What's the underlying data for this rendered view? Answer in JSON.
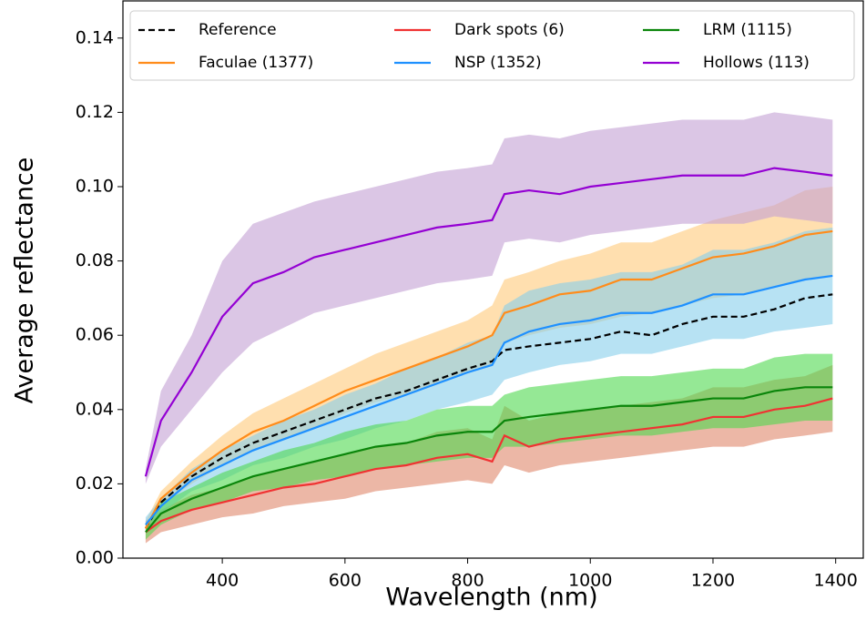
{
  "chart_data": {
    "type": "line",
    "x_label": "Wavelength (nm)",
    "y_label": "Average reflectance",
    "x": [
      275,
      300,
      350,
      400,
      450,
      500,
      550,
      600,
      650,
      700,
      750,
      800,
      840,
      860,
      900,
      950,
      1000,
      1050,
      1100,
      1150,
      1200,
      1250,
      1300,
      1350,
      1395
    ],
    "xlim": [
      238,
      1445
    ],
    "xticks": [
      400,
      600,
      800,
      1000,
      1200,
      1400
    ],
    "ylim": [
      0,
      0.15
    ],
    "yticks": [
      {
        "value": 0,
        "label": "0.00"
      },
      {
        "value": 0.02,
        "label": "0.02"
      },
      {
        "value": 0.04,
        "label": "0.04"
      },
      {
        "value": 0.06,
        "label": "0.06"
      },
      {
        "value": 0.08,
        "label": "0.08"
      },
      {
        "value": 0.1,
        "label": "0.10"
      },
      {
        "value": 0.12,
        "label": "0.12"
      },
      {
        "value": 0.14,
        "label": "0.14"
      }
    ],
    "legend": "upper center",
    "series": [
      {
        "name": "Reference",
        "color": "#000000",
        "dash": true,
        "values": [
          0.008,
          0.015,
          0.022,
          0.027,
          0.031,
          0.034,
          0.037,
          0.04,
          0.043,
          0.045,
          0.048,
          0.051,
          0.053,
          0.056,
          0.057,
          0.058,
          0.059,
          0.061,
          0.06,
          0.063,
          0.065,
          0.065,
          0.067,
          0.07,
          0.071
        ]
      },
      {
        "name": "Faculae (1377)",
        "color": "#ff8c1a",
        "band_color": "#ffc97a",
        "values": [
          0.008,
          0.016,
          0.023,
          0.029,
          0.034,
          0.037,
          0.041,
          0.045,
          0.048,
          0.051,
          0.054,
          0.057,
          0.06,
          0.066,
          0.068,
          0.071,
          0.072,
          0.075,
          0.075,
          0.078,
          0.081,
          0.082,
          0.084,
          0.087,
          0.088
        ],
        "lower": [
          0.007,
          0.014,
          0.02,
          0.025,
          0.029,
          0.032,
          0.035,
          0.039,
          0.042,
          0.044,
          0.047,
          0.05,
          0.052,
          0.058,
          0.06,
          0.062,
          0.063,
          0.065,
          0.066,
          0.068,
          0.07,
          0.071,
          0.073,
          0.075,
          0.076
        ],
        "upper": [
          0.01,
          0.018,
          0.026,
          0.033,
          0.039,
          0.043,
          0.047,
          0.051,
          0.055,
          0.058,
          0.061,
          0.064,
          0.068,
          0.075,
          0.077,
          0.08,
          0.082,
          0.085,
          0.085,
          0.088,
          0.091,
          0.093,
          0.095,
          0.099,
          0.1
        ]
      },
      {
        "name": "Dark spots (6)",
        "color": "#f03232",
        "band_color": "#e0876a",
        "values": [
          0.007,
          0.01,
          0.013,
          0.015,
          0.017,
          0.019,
          0.02,
          0.022,
          0.024,
          0.025,
          0.027,
          0.028,
          0.026,
          0.033,
          0.03,
          0.032,
          0.033,
          0.034,
          0.035,
          0.036,
          0.038,
          0.038,
          0.04,
          0.041,
          0.043
        ],
        "lower": [
          0.004,
          0.007,
          0.009,
          0.011,
          0.012,
          0.014,
          0.015,
          0.016,
          0.018,
          0.019,
          0.02,
          0.021,
          0.02,
          0.025,
          0.023,
          0.025,
          0.026,
          0.027,
          0.028,
          0.029,
          0.03,
          0.03,
          0.032,
          0.033,
          0.034
        ],
        "upper": [
          0.01,
          0.013,
          0.017,
          0.019,
          0.022,
          0.024,
          0.026,
          0.028,
          0.03,
          0.031,
          0.034,
          0.035,
          0.032,
          0.041,
          0.037,
          0.039,
          0.04,
          0.041,
          0.042,
          0.043,
          0.046,
          0.046,
          0.048,
          0.049,
          0.052
        ]
      },
      {
        "name": "NSP (1352)",
        "color": "#1e90ff",
        "band_color": "#87ceeb",
        "values": [
          0.009,
          0.014,
          0.021,
          0.025,
          0.029,
          0.032,
          0.035,
          0.038,
          0.041,
          0.044,
          0.047,
          0.05,
          0.052,
          0.058,
          0.061,
          0.063,
          0.064,
          0.066,
          0.066,
          0.068,
          0.071,
          0.071,
          0.073,
          0.075,
          0.076
        ],
        "lower": [
          0.008,
          0.012,
          0.018,
          0.021,
          0.025,
          0.027,
          0.03,
          0.032,
          0.035,
          0.037,
          0.04,
          0.042,
          0.044,
          0.048,
          0.05,
          0.052,
          0.053,
          0.055,
          0.055,
          0.057,
          0.059,
          0.059,
          0.061,
          0.062,
          0.063
        ],
        "upper": [
          0.011,
          0.016,
          0.024,
          0.029,
          0.033,
          0.037,
          0.04,
          0.044,
          0.047,
          0.051,
          0.054,
          0.058,
          0.06,
          0.068,
          0.072,
          0.074,
          0.075,
          0.077,
          0.077,
          0.079,
          0.083,
          0.083,
          0.085,
          0.088,
          0.089
        ]
      },
      {
        "name": "LRM (1115)",
        "color": "#0a850a",
        "band_color": "#4ed84e",
        "values": [
          0.007,
          0.012,
          0.016,
          0.019,
          0.022,
          0.024,
          0.026,
          0.028,
          0.03,
          0.031,
          0.033,
          0.034,
          0.034,
          0.037,
          0.038,
          0.039,
          0.04,
          0.041,
          0.041,
          0.042,
          0.043,
          0.043,
          0.045,
          0.046,
          0.046
        ],
        "lower": [
          0.005,
          0.009,
          0.013,
          0.015,
          0.018,
          0.019,
          0.021,
          0.022,
          0.024,
          0.025,
          0.026,
          0.027,
          0.027,
          0.03,
          0.03,
          0.031,
          0.032,
          0.033,
          0.033,
          0.034,
          0.035,
          0.035,
          0.036,
          0.037,
          0.037
        ],
        "upper": [
          0.009,
          0.015,
          0.019,
          0.023,
          0.026,
          0.029,
          0.031,
          0.034,
          0.036,
          0.037,
          0.04,
          0.041,
          0.041,
          0.044,
          0.046,
          0.047,
          0.048,
          0.049,
          0.049,
          0.05,
          0.051,
          0.051,
          0.054,
          0.055,
          0.055
        ]
      },
      {
        "name": "Hollows (113)",
        "color": "#9400d3",
        "band_color": "#c3a0d3",
        "values": [
          0.022,
          0.037,
          0.05,
          0.065,
          0.074,
          0.077,
          0.081,
          0.083,
          0.085,
          0.087,
          0.089,
          0.09,
          0.091,
          0.098,
          0.099,
          0.098,
          0.1,
          0.101,
          0.102,
          0.103,
          0.103,
          0.103,
          0.105,
          0.104,
          0.103
        ],
        "lower": [
          0.02,
          0.03,
          0.04,
          0.05,
          0.058,
          0.062,
          0.066,
          0.068,
          0.07,
          0.072,
          0.074,
          0.075,
          0.076,
          0.085,
          0.086,
          0.085,
          0.087,
          0.088,
          0.089,
          0.09,
          0.09,
          0.09,
          0.092,
          0.091,
          0.09
        ],
        "upper": [
          0.024,
          0.045,
          0.06,
          0.08,
          0.09,
          0.093,
          0.096,
          0.098,
          0.1,
          0.102,
          0.104,
          0.105,
          0.106,
          0.113,
          0.114,
          0.113,
          0.115,
          0.116,
          0.117,
          0.118,
          0.118,
          0.118,
          0.12,
          0.119,
          0.118
        ]
      }
    ]
  }
}
